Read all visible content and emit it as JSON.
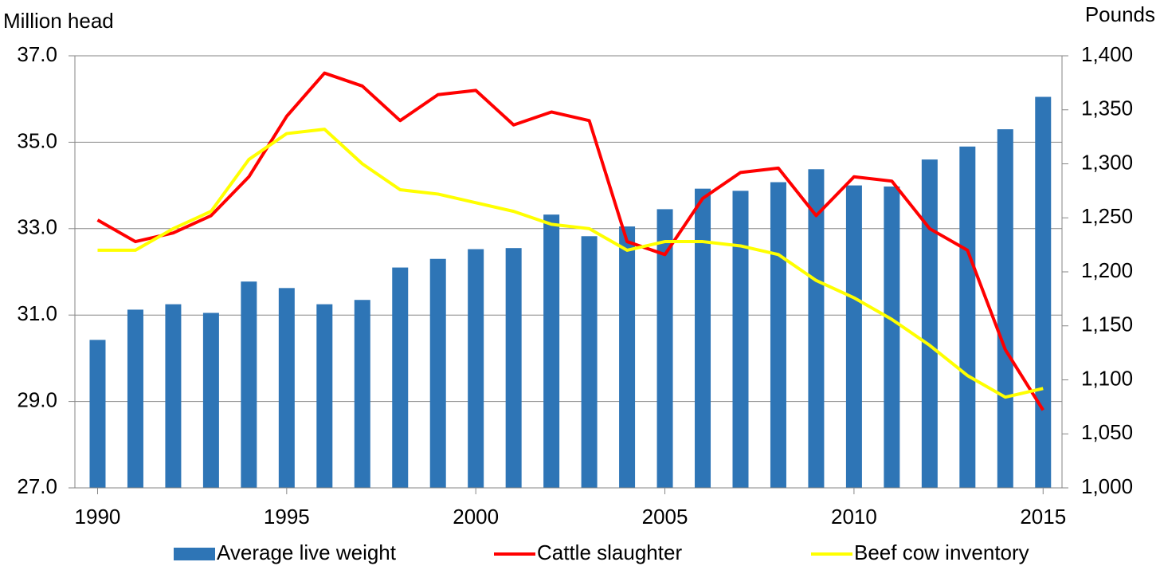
{
  "chart_data": {
    "type": "bar",
    "legend": "bottom",
    "grid": true,
    "y_label": "Million head",
    "y2_label": "Pounds",
    "x": [
      1990,
      1991,
      1992,
      1993,
      1994,
      1995,
      1996,
      1997,
      1998,
      1999,
      2000,
      2001,
      2002,
      2003,
      2004,
      2005,
      2006,
      2007,
      2008,
      2009,
      2010,
      2011,
      2012,
      2013,
      2014,
      2015
    ],
    "xlim": [
      1989.4,
      2015.5
    ],
    "xticks": [
      1990,
      1995,
      2000,
      2005,
      2010,
      2015
    ],
    "ylim": [
      27,
      37
    ],
    "yticks": [
      {
        "value": 27,
        "label": "27.0"
      },
      {
        "value": 29,
        "label": "29.0"
      },
      {
        "value": 31,
        "label": "31.0"
      },
      {
        "value": 33,
        "label": "33.0"
      },
      {
        "value": 35,
        "label": "35.0"
      },
      {
        "value": 37,
        "label": "37.0"
      }
    ],
    "y2lim": [
      1000,
      1400
    ],
    "y2ticks": [
      {
        "value": 1000,
        "label": "1,000"
      },
      {
        "value": 1050,
        "label": "1,050"
      },
      {
        "value": 1100,
        "label": "1,100"
      },
      {
        "value": 1150,
        "label": "1,150"
      },
      {
        "value": 1200,
        "label": "1,200"
      },
      {
        "value": 1250,
        "label": "1,250"
      },
      {
        "value": 1300,
        "label": "1,300"
      },
      {
        "value": 1350,
        "label": "1,350"
      },
      {
        "value": 1400,
        "label": "1,400"
      }
    ],
    "series": [
      {
        "name": "Average live weight",
        "type": "bar",
        "axis": "y2",
        "color": "#2e75b6",
        "values": [
          1137,
          1165,
          1170,
          1162,
          1191,
          1185,
          1170,
          1174,
          1204,
          1212,
          1221,
          1222,
          1253,
          1233,
          1242,
          1258,
          1277,
          1275,
          1283,
          1295,
          1280,
          1279,
          1304,
          1316,
          1332,
          1362
        ]
      },
      {
        "name": "Cattle slaughter",
        "type": "line",
        "color": "#ff0000",
        "values": [
          33.2,
          32.7,
          32.9,
          33.3,
          34.2,
          35.6,
          36.6,
          36.3,
          35.5,
          36.1,
          36.2,
          35.4,
          35.7,
          35.5,
          32.7,
          32.4,
          33.7,
          34.3,
          34.4,
          33.3,
          34.2,
          34.1,
          33.0,
          32.5,
          30.2,
          28.8
        ]
      },
      {
        "name": "Beef cow inventory",
        "type": "line",
        "color": "#ffff00",
        "values": [
          32.5,
          32.5,
          33.0,
          33.4,
          34.6,
          35.2,
          35.3,
          34.5,
          33.9,
          33.8,
          33.6,
          33.4,
          33.1,
          33.0,
          32.5,
          32.7,
          32.7,
          32.6,
          32.4,
          31.8,
          31.4,
          30.9,
          30.3,
          29.6,
          29.1,
          29.3
        ]
      }
    ]
  }
}
